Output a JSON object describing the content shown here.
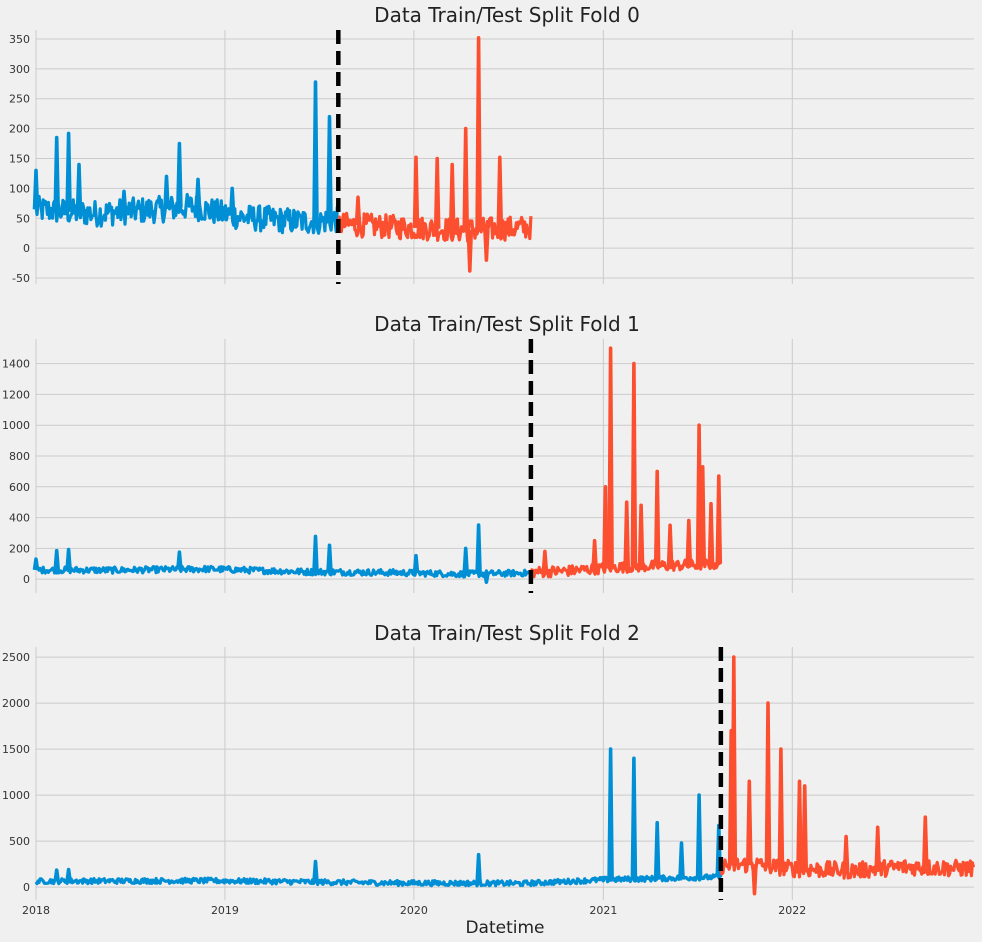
{
  "colors": {
    "train": "#008fd5",
    "test": "#fc4f30",
    "split": "#000000",
    "grid": "#cbcbcb",
    "background": "#f0f0f0"
  },
  "shared_x": {
    "xlabel": "Datetime",
    "range": [
      "2018-01-01",
      "2022-12-18"
    ],
    "ticks": [
      "2018-01-01",
      "2019-01-01",
      "2020-01-01",
      "2021-01-01",
      "2022-01-01"
    ],
    "tick_labels": [
      "2018",
      "2019",
      "2020",
      "2021",
      "2022"
    ]
  },
  "chart_data": [
    {
      "type": "line",
      "title": "Data Train/Test Split Fold 0",
      "ylim": [
        -60,
        365
      ],
      "yticks": [
        -50,
        0,
        50,
        100,
        150,
        200,
        250,
        300,
        350
      ],
      "split_date": "2019-08-08",
      "series": [
        {
          "x": [
            "2018-01-01",
            "2018-02-15",
            "2018-03-15",
            "2018-05-01",
            "2018-07-01",
            "2018-09-01",
            "2018-11-01",
            "2018-12-15",
            "2019-02-01",
            "2019-04-01",
            "2019-05-20",
            "2019-07-01",
            "2019-08-07"
          ],
          "base": [
            65,
            62,
            60,
            58,
            62,
            65,
            70,
            60,
            52,
            48,
            45,
            45,
            48
          ],
          "noise": 22,
          "spikes": [
            [
              "2018-01-01",
              130
            ],
            [
              "2018-02-10",
              185
            ],
            [
              "2018-03-05",
              192
            ],
            [
              "2018-03-25",
              140
            ],
            [
              "2018-06-20",
              95
            ],
            [
              "2018-09-10",
              120
            ],
            [
              "2018-10-05",
              175
            ],
            [
              "2018-11-10",
              115
            ],
            [
              "2019-01-15",
              100
            ],
            [
              "2019-06-25",
              278
            ],
            [
              "2019-07-22",
              220
            ]
          ]
        },
        {
          "x": [
            "2019-08-08",
            "2019-10-01",
            "2019-12-01",
            "2020-02-01",
            "2020-04-01",
            "2020-06-01",
            "2020-08-14"
          ],
          "base": [
            40,
            38,
            35,
            33,
            30,
            32,
            35
          ],
          "noise": 20,
          "spikes": [
            [
              "2019-09-15",
              85
            ],
            [
              "2020-01-05",
              152
            ],
            [
              "2020-02-15",
              150
            ],
            [
              "2020-03-15",
              140
            ],
            [
              "2020-04-10",
              200
            ],
            [
              "2020-05-05",
              352
            ],
            [
              "2020-06-15",
              152
            ],
            [
              "2020-05-20",
              -20
            ],
            [
              "2020-04-18",
              -38
            ]
          ]
        }
      ]
    },
    {
      "type": "line",
      "title": "Data Train/Test Split Fold 1",
      "ylim": [
        -90,
        1560
      ],
      "yticks": [
        0,
        200,
        400,
        600,
        800,
        1000,
        1200,
        1400
      ],
      "split_date": "2020-08-14",
      "series": [
        {
          "x": [
            "2018-01-01",
            "2018-06-01",
            "2018-12-01",
            "2019-06-01",
            "2019-12-01",
            "2020-04-01",
            "2020-08-13"
          ],
          "base": [
            60,
            58,
            66,
            48,
            42,
            33,
            40
          ],
          "noise": 20,
          "spikes": [
            [
              "2018-01-01",
              130
            ],
            [
              "2018-02-10",
              185
            ],
            [
              "2018-03-05",
              192
            ],
            [
              "2018-10-05",
              175
            ],
            [
              "2019-06-25",
              278
            ],
            [
              "2019-07-22",
              220
            ],
            [
              "2020-01-05",
              152
            ],
            [
              "2020-04-10",
              200
            ],
            [
              "2020-05-05",
              352
            ],
            [
              "2020-05-20",
              -20
            ]
          ]
        },
        {
          "x": [
            "2020-08-14",
            "2020-11-01",
            "2021-01-15",
            "2021-04-01",
            "2021-06-01",
            "2021-08-16"
          ],
          "base": [
            45,
            55,
            75,
            85,
            90,
            100
          ],
          "noise": 35,
          "spikes": [
            [
              "2020-09-10",
              180
            ],
            [
              "2020-12-15",
              250
            ],
            [
              "2021-01-05",
              600
            ],
            [
              "2021-01-15",
              1500
            ],
            [
              "2021-02-15",
              500
            ],
            [
              "2021-03-01",
              1400
            ],
            [
              "2021-03-15",
              480
            ],
            [
              "2021-04-15",
              700
            ],
            [
              "2021-05-10",
              350
            ],
            [
              "2021-06-15",
              380
            ],
            [
              "2021-07-05",
              1000
            ],
            [
              "2021-07-12",
              730
            ],
            [
              "2021-07-28",
              490
            ],
            [
              "2021-08-12",
              670
            ]
          ]
        }
      ]
    },
    {
      "type": "line",
      "title": "Data Train/Test Split Fold 2",
      "ylim": [
        -140,
        2610
      ],
      "yticks": [
        0,
        500,
        1000,
        1500,
        2000,
        2500
      ],
      "split_date": "2021-08-16",
      "series": [
        {
          "x": [
            "2018-01-01",
            "2018-12-01",
            "2019-12-01",
            "2020-08-01",
            "2021-01-01",
            "2021-08-15"
          ],
          "base": [
            65,
            70,
            45,
            40,
            80,
            110
          ],
          "noise": 28,
          "spikes": [
            [
              "2018-02-10",
              185
            ],
            [
              "2018-03-05",
              192
            ],
            [
              "2019-06-25",
              278
            ],
            [
              "2020-05-05",
              352
            ],
            [
              "2021-01-15",
              1500
            ],
            [
              "2021-03-01",
              1400
            ],
            [
              "2021-04-15",
              700
            ],
            [
              "2021-07-05",
              1000
            ],
            [
              "2021-08-12",
              670
            ],
            [
              "2021-06-01",
              480
            ]
          ]
        },
        {
          "x": [
            "2021-08-16",
            "2021-10-15",
            "2022-01-01",
            "2022-05-01",
            "2022-08-01",
            "2022-12-18"
          ],
          "base": [
            230,
            250,
            200,
            180,
            220,
            200
          ],
          "noise": 90,
          "spikes": [
            [
              "2021-09-10",
              2500
            ],
            [
              "2021-09-05",
              1700
            ],
            [
              "2021-10-10",
              1150
            ],
            [
              "2021-11-15",
              2000
            ],
            [
              "2021-12-10",
              1500
            ],
            [
              "2022-01-15",
              1150
            ],
            [
              "2022-01-25",
              1100
            ],
            [
              "2022-04-15",
              550
            ],
            [
              "2022-06-15",
              650
            ],
            [
              "2022-09-15",
              760
            ],
            [
              "2021-10-20",
              -70
            ]
          ]
        }
      ]
    }
  ]
}
